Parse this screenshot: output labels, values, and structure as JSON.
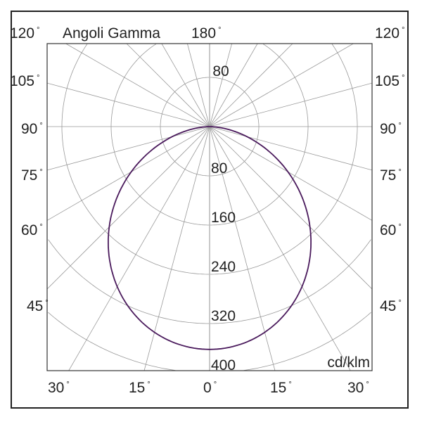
{
  "chart_data": {
    "type": "polar",
    "title": "Angoli Gamma",
    "unit_label": "cd/klm",
    "radial_ticks": [
      80,
      160,
      240,
      320,
      400
    ],
    "upper_radial_tick": "80",
    "rmax": 400,
    "angle_labels_left": [
      "120",
      "105",
      "90",
      "75",
      "60",
      "45"
    ],
    "angle_labels_right": [
      "120",
      "105",
      "90",
      "75",
      "60",
      "45"
    ],
    "angle_labels_bottom": [
      "30",
      "15",
      "0",
      "15",
      "30"
    ],
    "angle_label_top": "180",
    "degree_symbol": "°",
    "grid": true,
    "grid_angle_step": 15,
    "series": [
      {
        "color": "#4a1a5c",
        "gamma": [
          0,
          15,
          30,
          45,
          60,
          75,
          90
        ],
        "intensity": [
          362,
          346,
          300,
          231,
          147,
          63,
          0
        ]
      }
    ]
  }
}
